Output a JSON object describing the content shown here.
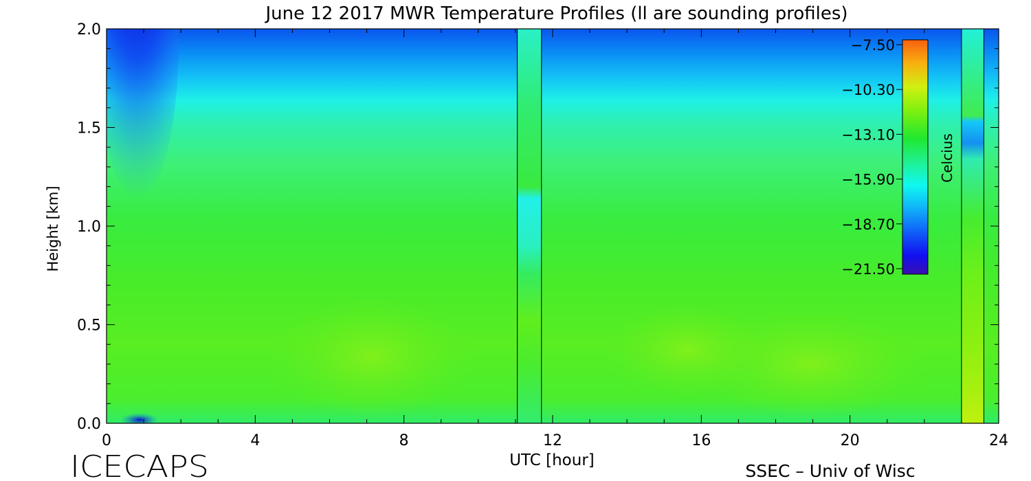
{
  "chart_data": {
    "type": "heatmap",
    "title": "June 12 2017 MWR Temperature Profiles (ll are sounding profiles)",
    "xlabel": "UTC [hour]",
    "ylabel": "Height [km]",
    "xlim": [
      0,
      24
    ],
    "ylim": [
      0,
      2.0
    ],
    "xticks": [
      "0",
      "4",
      "8",
      "12",
      "16",
      "20",
      "24"
    ],
    "yticks": [
      "0.0",
      "0.5",
      "1.0",
      "1.5",
      "2.0"
    ],
    "colorbar": {
      "label": "Celcius",
      "ticks": [
        "-7.50",
        "-10.30",
        "-13.10",
        "-15.90",
        "-18.70",
        "-21.50"
      ],
      "range": [
        -21.5,
        -7.5
      ]
    },
    "sounding_profiles": [
      {
        "time_start": 11.05,
        "time_end": 11.7
      },
      {
        "time_start": 23.0,
        "time_end": 23.6
      }
    ],
    "grid": false
  },
  "footer": {
    "left": "ICECAPS",
    "right": "SSEC – Univ of Wisc"
  }
}
